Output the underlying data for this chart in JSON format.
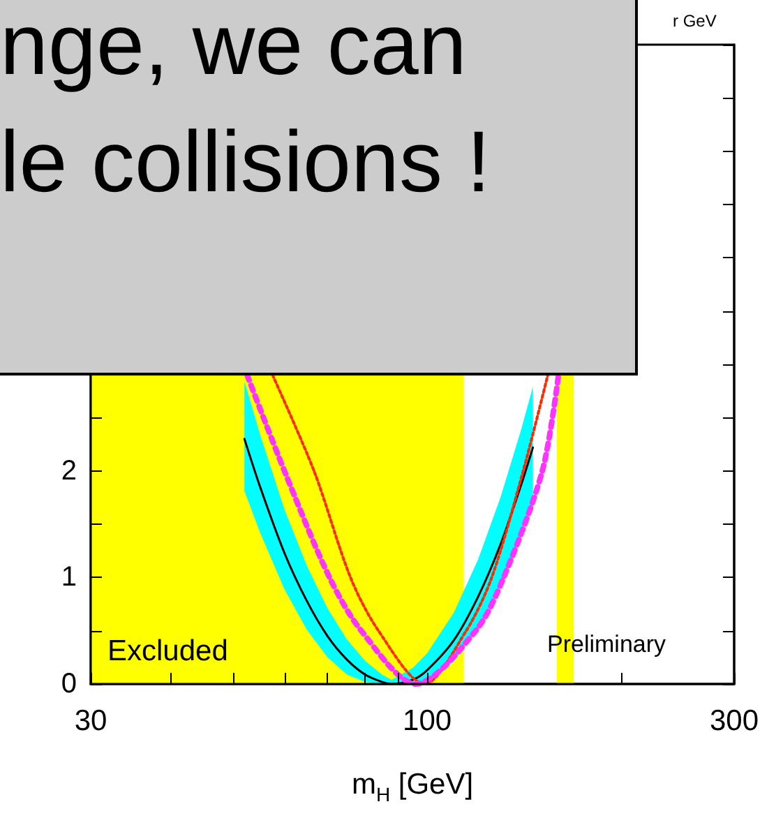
{
  "chart_data": {
    "type": "line",
    "xlabel": "m$_{H}$ [GeV]",
    "log": "x",
    "xlim": [
      30,
      300
    ],
    "ylim": [
      0,
      6
    ],
    "xticks": [
      30,
      {
        "value": 40,
        "label": null
      },
      {
        "value": 50,
        "label": null
      },
      {
        "value": 60,
        "label": null
      },
      {
        "value": 70,
        "label": null
      },
      {
        "value": 80,
        "label": null
      },
      {
        "value": 90,
        "label": null
      },
      100,
      {
        "value": 200,
        "label": null
      },
      300
    ],
    "yticks": [
      0,
      {
        "value": 0.5,
        "label": null
      },
      1,
      {
        "value": 1.5,
        "label": null
      },
      2,
      {
        "value": 2.5,
        "label": null
      },
      {
        "value": 3,
        "label": null
      },
      {
        "value": 3.5,
        "label": null
      },
      {
        "value": 4,
        "label": null
      },
      {
        "value": 4.5,
        "label": null
      },
      {
        "value": 5,
        "label": null
      },
      {
        "value": 5.5,
        "label": null
      },
      {
        "value": 6,
        "label": null
      }
    ],
    "grid": false,
    "marker": "none",
    "series": [
      {
        "color": "#000000",
        "line_style": "solid",
        "x": [
          52,
          55,
          60,
          65,
          70,
          75,
          80,
          85,
          88,
          95,
          100,
          110,
          120,
          130,
          140,
          146
        ],
        "values": [
          2.3,
          1.85,
          1.23,
          0.78,
          0.45,
          0.23,
          0.09,
          0.02,
          0,
          0.04,
          0.13,
          0.41,
          0.82,
          1.31,
          1.87,
          2.22
        ],
        "lower": [
          1.81,
          1.42,
          0.89,
          0.51,
          0.25,
          0.09,
          0.02,
          0,
          0,
          0,
          0.03,
          0.21,
          0.52,
          0.93,
          1.41,
          1.72
        ],
        "upper": [
          2.84,
          2.34,
          1.64,
          1.11,
          0.71,
          0.42,
          0.22,
          0.09,
          0.04,
          0.15,
          0.29,
          0.67,
          1.17,
          1.75,
          2.39,
          2.79
        ]
      },
      {
        "color": "#ff2a00",
        "line_style": "dotted",
        "x": [
          57.5,
          66.7,
          76,
          84,
          99,
          115,
          126,
          141,
          154
        ],
        "values": [
          2.9,
          2,
          1,
          0.5,
          0,
          0.5,
          1,
          2,
          2.9
        ]
      },
      {
        "color": "#ff33ff",
        "line_style": "dotted",
        "x": [
          52.5,
          60,
          70.5,
          79,
          96,
          119,
          131.5,
          151,
          160
        ],
        "values": [
          2.9,
          2,
          1,
          0.5,
          0,
          0.5,
          1,
          2,
          2.9
        ]
      }
    ],
    "bands": [
      {
        "axis": "x",
        "from": 30,
        "to": 114,
        "color": "#ffff00",
        "label": "Excluded"
      },
      {
        "axis": "x",
        "from": 159,
        "to": 169,
        "color": "#ffff00"
      }
    ],
    "annotations": [
      "nge, we can",
      "le collisions !",
      "Preliminary",
      "r GeV"
    ]
  }
}
